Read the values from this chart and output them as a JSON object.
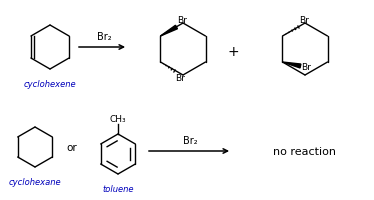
{
  "bg_color": "#ffffff",
  "text_color": "#000000",
  "blue_label_color": "#0000bb",
  "bond_color": "#000000",
  "arrow_color": "#000000",
  "label_cyclohexene": "cyclohexene",
  "label_cyclohexane": "cyclohexane",
  "label_toluene": "toluene",
  "label_br2_reagent1": "Br₂",
  "label_br2_reagent2": "Br₂",
  "label_plus": "+",
  "label_no_reaction": "no reaction",
  "label_or": "or",
  "label_ch3": "CH₃",
  "figsize": [
    3.74,
    2.01
  ],
  "dpi": 100
}
